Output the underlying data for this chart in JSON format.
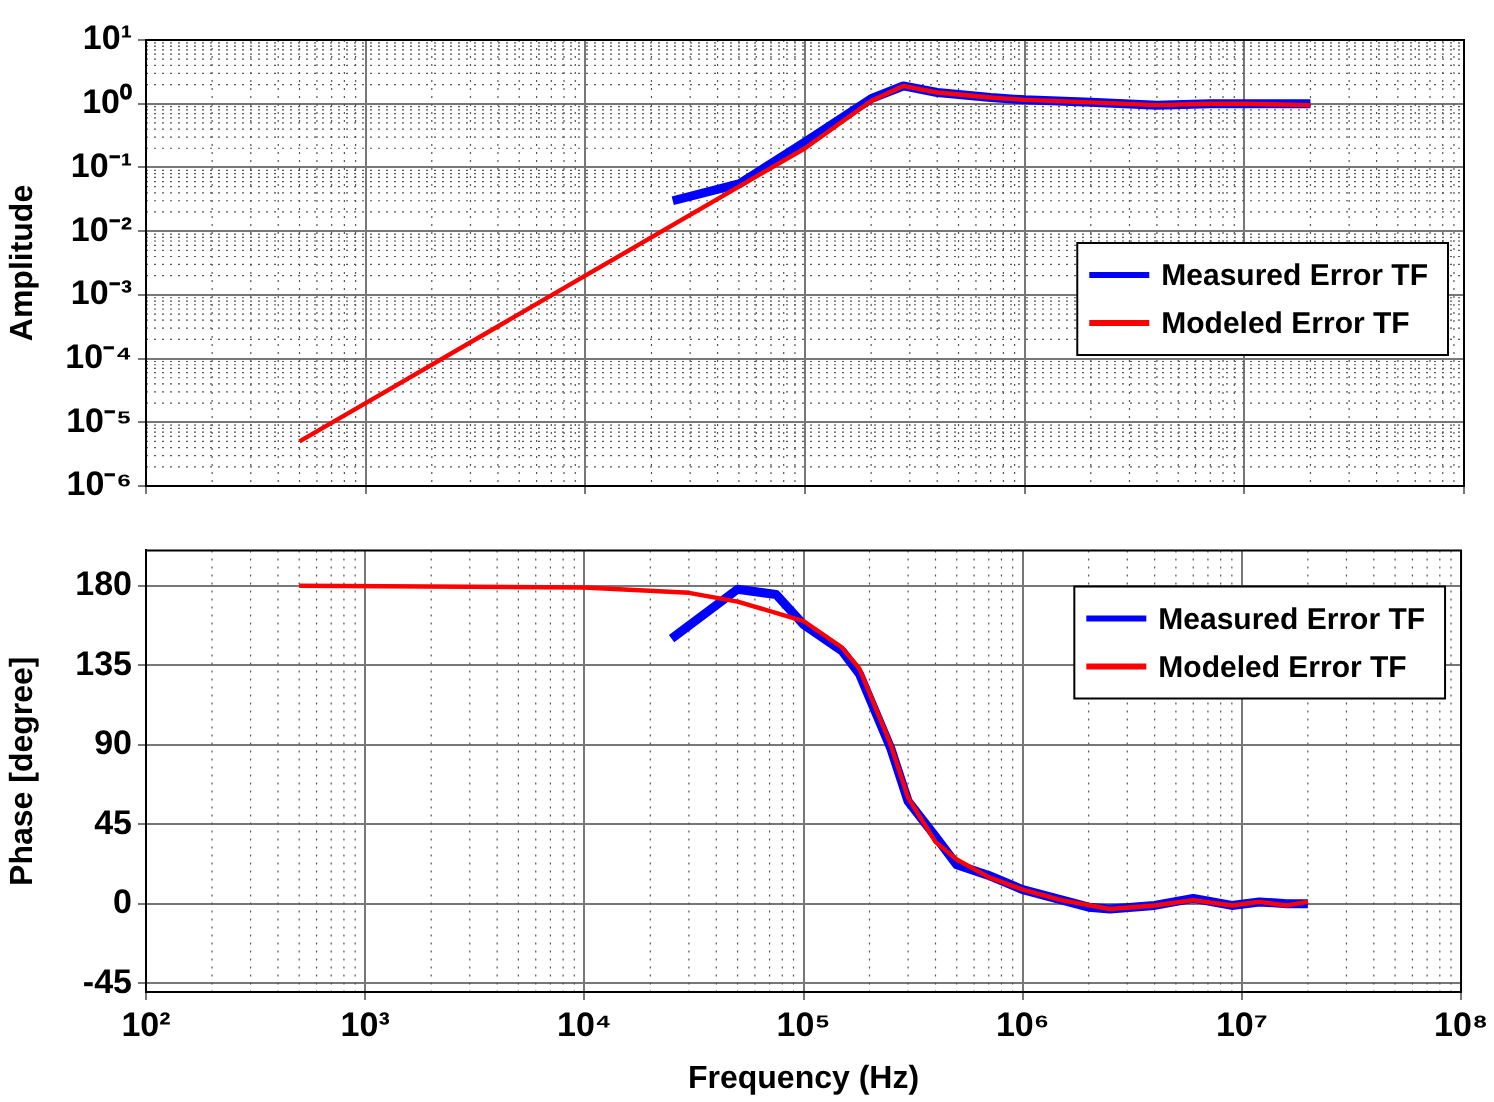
{
  "chart_data": [
    {
      "type": "line",
      "ylabel": "Amplitude",
      "log": "xy",
      "grid": true,
      "legend": "right",
      "tick_labels": "y",
      "line_style": "solid",
      "xlim": [
        100,
        100000000
      ],
      "xticks": [
        {
          "value": 100,
          "label": null
        },
        {
          "value": 1000,
          "label": null
        },
        {
          "value": 10000,
          "label": null
        },
        {
          "value": 100000,
          "label": null
        },
        {
          "value": 1000000,
          "label": null
        },
        {
          "value": 10000000,
          "label": null
        },
        {
          "value": 100000000,
          "label": null
        }
      ],
      "ylim": [
        1e-06,
        10
      ],
      "yticks": [
        {
          "value": 1e-06,
          "label": "10⁻⁶"
        },
        {
          "value": 1e-05,
          "label": "10⁻⁵"
        },
        {
          "value": 0.0001,
          "label": "10⁻⁴"
        },
        {
          "value": 0.001,
          "label": "10⁻³"
        },
        {
          "value": 0.01,
          "label": "10⁻²"
        },
        {
          "value": 0.1,
          "label": "10⁻¹"
        },
        {
          "value": 1,
          "label": "10⁰"
        },
        {
          "value": 10,
          "label": "10¹"
        }
      ],
      "series": [
        {
          "name": "Measured Error TF",
          "color": "#0000ff",
          "x": [
            25000,
            50000,
            100000,
            200000,
            280000,
            400000,
            700000,
            1000000,
            2000000,
            4000000,
            7000000,
            10000000,
            20000000
          ],
          "values": [
            0.03,
            0.055,
            0.25,
            1.2,
            1.9,
            1.5,
            1.25,
            1.15,
            1.05,
            0.95,
            1.0,
            1.0,
            1.0
          ]
        },
        {
          "name": "Modeled Error TF",
          "color": "#ff0000",
          "x": [
            500,
            1000,
            10000,
            50000,
            100000,
            200000,
            280000,
            400000,
            700000,
            1000000,
            2000000,
            4000000,
            7000000,
            10000000,
            20000000
          ],
          "values": [
            5e-06,
            2e-05,
            0.002,
            0.05,
            0.2,
            1.1,
            1.9,
            1.5,
            1.25,
            1.15,
            1.05,
            0.95,
            1.0,
            1.0,
            0.95
          ]
        }
      ]
    },
    {
      "type": "line",
      "xlabel": "Frequency (Hz)",
      "ylabel": "Phase [degree]",
      "log": "x",
      "grid": true,
      "legend": "top right",
      "line_style": "solid",
      "xlim": [
        100,
        100000000
      ],
      "xticks": [
        {
          "value": 100,
          "label": "10²"
        },
        {
          "value": 1000,
          "label": "10³"
        },
        {
          "value": 10000,
          "label": "10⁴"
        },
        {
          "value": 100000,
          "label": "10⁵"
        },
        {
          "value": 1000000,
          "label": "10⁶"
        },
        {
          "value": 10000000,
          "label": "10⁷"
        },
        {
          "value": 100000000,
          "label": "10⁸"
        }
      ],
      "ylim": [
        -50,
        200
      ],
      "yticks": [
        -45,
        0,
        45,
        90,
        135,
        180
      ],
      "series": [
        {
          "name": "Measured Error TF",
          "color": "#0000ff",
          "x": [
            25000,
            50000,
            75000,
            100000,
            150000,
            180000,
            250000,
            300000,
            400000,
            500000,
            700000,
            1000000,
            2000000,
            2500000,
            4000000,
            6000000,
            9000000,
            12000000,
            16000000,
            20000000
          ],
          "values": [
            150,
            178,
            175,
            158,
            143,
            130,
            88,
            58,
            38,
            22,
            16,
            8,
            -2,
            -3,
            -1,
            3,
            -1,
            1,
            0,
            0
          ]
        },
        {
          "name": "Modeled Error TF",
          "color": "#ff0000",
          "x": [
            500,
            10000,
            30000,
            50000,
            100000,
            150000,
            180000,
            250000,
            300000,
            400000,
            500000,
            700000,
            1000000,
            1500000,
            2500000,
            4000000,
            6000000,
            9000000,
            12000000,
            16000000,
            20000000
          ],
          "values": [
            180,
            179,
            176,
            171,
            160,
            145,
            133,
            90,
            60,
            35,
            25,
            15,
            8,
            2,
            -3,
            -1,
            2,
            -1,
            1,
            -1,
            1
          ]
        }
      ]
    }
  ]
}
